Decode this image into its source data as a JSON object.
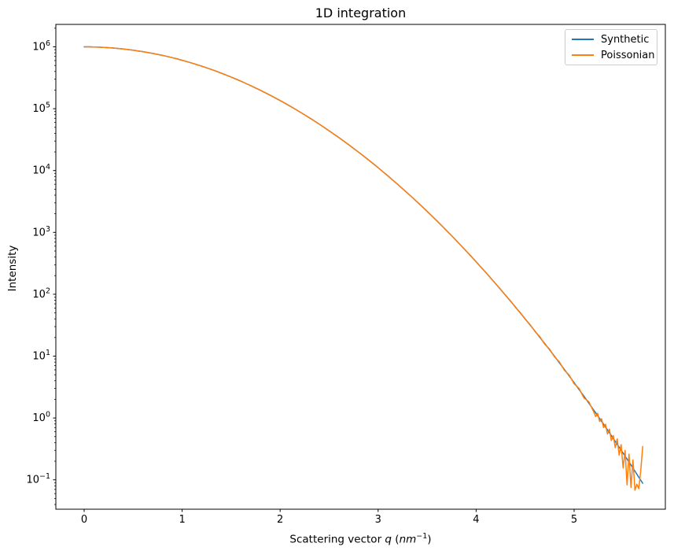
{
  "figure": {
    "title": "1D integration",
    "ylabel": "Intensity",
    "xlabel_parts": {
      "prefix": "Scattering vector ",
      "q": "q",
      "open": " (",
      "unit": "nm",
      "exp": "−1",
      "close": ")"
    }
  },
  "legend": {
    "entries": [
      {
        "label": "Synthetic",
        "color": "#1f77b4"
      },
      {
        "label": "Poissonian",
        "color": "#ff7f0e"
      }
    ],
    "position": "upper right"
  },
  "axes": {
    "xticks": [
      0,
      1,
      2,
      3,
      4,
      5
    ],
    "ytick_exponents": [
      6,
      5,
      4,
      3,
      2,
      1,
      0,
      -1
    ],
    "spine_color": "#000000",
    "background": "#ffffff"
  },
  "chart_data": {
    "type": "line",
    "title": "1D integration",
    "xlabel": "Scattering vector q (nm⁻¹)",
    "ylabel": "Intensity",
    "xscale": "linear",
    "yscale": "log",
    "xlim": [
      -0.29,
      5.93
    ],
    "ylim": [
      0.0336,
      2300000
    ],
    "grid": false,
    "legend_position": "upper right",
    "x": [
      0,
      0.05,
      0.1,
      0.15,
      0.2,
      0.25,
      0.3,
      0.35,
      0.4,
      0.45,
      0.5,
      0.55,
      0.6,
      0.65,
      0.7,
      0.75,
      0.8,
      0.85,
      0.9,
      0.95,
      1,
      1.05,
      1.1,
      1.15,
      1.2,
      1.25,
      1.3,
      1.35,
      1.4,
      1.45,
      1.5,
      1.55,
      1.6,
      1.65,
      1.7,
      1.75,
      1.8,
      1.85,
      1.9,
      1.95,
      2,
      2.05,
      2.1,
      2.15,
      2.2,
      2.25,
      2.3,
      2.35,
      2.4,
      2.45,
      2.5,
      2.55,
      2.6,
      2.65,
      2.7,
      2.75,
      2.8,
      2.85,
      2.9,
      2.95,
      3,
      3.05,
      3.1,
      3.15,
      3.2,
      3.25,
      3.3,
      3.35,
      3.4,
      3.45,
      3.5,
      3.55,
      3.6,
      3.65,
      3.7,
      3.75,
      3.8,
      3.85,
      3.9,
      3.95,
      4,
      4.05,
      4.1,
      4.15,
      4.2,
      4.25,
      4.3,
      4.35,
      4.4,
      4.45,
      4.5,
      4.55,
      4.6,
      4.65,
      4.7,
      4.75,
      4.8,
      4.85,
      4.9,
      4.95,
      5,
      5.05,
      5.1,
      5.15,
      5.2,
      5.22,
      5.24,
      5.26,
      5.28,
      5.3,
      5.32,
      5.34,
      5.36,
      5.38,
      5.4,
      5.42,
      5.44,
      5.46,
      5.48,
      5.5,
      5.52,
      5.54,
      5.56,
      5.58,
      5.6,
      5.62,
      5.64,
      5.66,
      5.68,
      5.7
    ],
    "series": [
      {
        "name": "Synthetic",
        "color": "#1f77b4",
        "values": [
          1000000,
          998800,
          995000,
          988800,
          980200,
          969200,
          956000,
          940600,
          923100,
          903700,
          882500,
          859600,
          835300,
          809600,
          782700,
          754800,
          726100,
          696800,
          667000,
          636800,
          606500,
          576200,
          546100,
          516200,
          486800,
          457800,
          429600,
          402000,
          375300,
          349500,
          324700,
          300800,
          278000,
          256300,
          235700,
          216300,
          197900,
          180600,
          164500,
          149400,
          135300,
          122300,
          110300,
          99140,
          88920,
          79560,
          71010,
          63210,
          56130,
          49720,
          43940,
          38730,
          34050,
          29860,
          26120,
          22800,
          19840,
          17230,
          14920,
          12890,
          11110,
          9549,
          8189,
          7004,
          5976,
          5086,
          4318,
          3657,
          3089,
          2603,
          2187,
          1834,
          1534,
          1279,
          1065,
          883.7,
          731.8,
          604.5,
          497.7,
          409.2,
          335.5,
          274.3,
          223.7,
          182.0,
          147.7,
          119.6,
          96.59,
          77.81,
          62.52,
          50.11,
          40.07,
          31.95,
          25.42,
          20.17,
          15.97,
          12.61,
          9.929,
          7.802,
          6.114,
          4.779,
          3.727,
          2.899,
          2.249,
          1.741,
          1.344,
          1.211,
          1.091,
          0.9818,
          0.8836,
          0.7949,
          0.7148,
          0.6426,
          0.5774,
          0.5188,
          0.4654,
          0.4178,
          0.3748,
          0.3361,
          0.3013,
          0.27,
          0.2418,
          0.2165,
          0.1938,
          0.1734,
          0.1549,
          0.1385,
          0.1238,
          0.1105,
          0.0987,
          0.0881
        ]
      },
      {
        "name": "Poissonian",
        "color": "#ff7f0e",
        "values": [
          1000000,
          998800,
          995000,
          988800,
          980200,
          969200,
          956000,
          940600,
          923100,
          903700,
          882500,
          859600,
          835300,
          809600,
          782700,
          754800,
          726100,
          696800,
          667000,
          636800,
          606500,
          576200,
          546100,
          516200,
          486800,
          457800,
          429600,
          402000,
          375300,
          349500,
          324700,
          300800,
          278000,
          256300,
          235700,
          216300,
          197900,
          180600,
          164500,
          149400,
          135300,
          122300,
          110300,
          99140,
          88920,
          79560,
          71010,
          63210,
          56130,
          49720,
          43940,
          38730,
          34050,
          29860,
          26120,
          22800,
          19840,
          17230,
          14920,
          12890,
          11110,
          9549,
          8189,
          7004,
          5976,
          5086,
          4318,
          3657,
          3089,
          2603,
          2187,
          1834,
          1534,
          1279,
          1065,
          883.7,
          731.8,
          604.5,
          497.7,
          409.2,
          335.5,
          274.3,
          223.7,
          182.0,
          147.7,
          120.1,
          95.8,
          78.6,
          61.9,
          50.8,
          39.6,
          32.5,
          25.0,
          20.6,
          15.6,
          12.9,
          9.71,
          8.05,
          5.92,
          4.93,
          3.58,
          3.02,
          2.11,
          1.83,
          1.26,
          1.05,
          1.19,
          0.88,
          0.97,
          0.7,
          0.79,
          0.55,
          0.66,
          0.43,
          0.52,
          0.33,
          0.46,
          0.25,
          0.37,
          0.155,
          0.3,
          0.083,
          0.26,
          0.075,
          0.21,
          0.068,
          0.085,
          0.072,
          0.14,
          0.345
        ]
      }
    ]
  }
}
